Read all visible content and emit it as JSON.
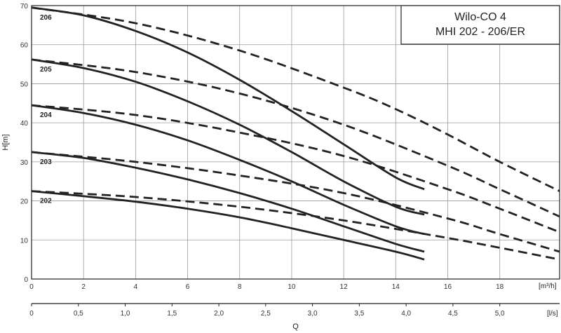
{
  "chart_data": {
    "type": "line",
    "title": [
      "Wilo-CO 4",
      "MHI 202 - 206/ER"
    ],
    "ylabel": "H[m]",
    "xlabel": "Q",
    "x_unit": "[m³/h]",
    "x2_unit": "[l/s]",
    "xlim": [
      0,
      20.3
    ],
    "ylim": [
      0,
      70
    ],
    "xticks": [
      0,
      2,
      4,
      6,
      8,
      10,
      12,
      14,
      16,
      18
    ],
    "xtick_labels": [
      "0",
      "2",
      "4",
      "6",
      "8",
      "10",
      "12",
      "14",
      "16",
      "18"
    ],
    "yticks": [
      0,
      10,
      20,
      30,
      40,
      50,
      60,
      70
    ],
    "ytick_labels": [
      "0",
      "10",
      "20",
      "30",
      "40",
      "50",
      "60",
      "70"
    ],
    "x2_ticks": [
      0,
      0.5,
      1.0,
      1.5,
      2.0,
      2.5,
      3.0,
      3.5,
      4.0,
      4.5,
      5.0
    ],
    "x2_tick_labels": [
      "0",
      "0,5",
      "1,0",
      "1,5",
      "2,0",
      "2,5",
      "3,0",
      "3,5",
      "4,0",
      "4,5",
      "5,0"
    ],
    "grid": true,
    "series": [
      {
        "name": "206",
        "style": "solid",
        "x": [
          0,
          2,
          4,
          6,
          8,
          10,
          12,
          14,
          15.1
        ],
        "y": [
          69.5,
          67.5,
          63.5,
          58,
          51,
          43,
          34.5,
          26,
          23
        ]
      },
      {
        "name": "206",
        "style": "dashed",
        "x": [
          0,
          4,
          8,
          12,
          14,
          16,
          18,
          20.3
        ],
        "y": [
          69.5,
          65.5,
          58.5,
          49,
          43.5,
          37,
          30,
          22.5
        ]
      },
      {
        "name": "205",
        "style": "solid",
        "x": [
          0,
          2,
          4,
          6,
          8,
          10,
          12,
          14,
          15.1
        ],
        "y": [
          56.2,
          54,
          50.5,
          45.5,
          39.5,
          32.5,
          25,
          18.5,
          16.5
        ]
      },
      {
        "name": "205",
        "style": "dashed",
        "x": [
          0,
          4,
          8,
          12,
          16,
          18,
          20.3
        ],
        "y": [
          56.2,
          53,
          47.5,
          39.5,
          29,
          23,
          16
        ]
      },
      {
        "name": "204",
        "style": "solid",
        "x": [
          0,
          2,
          4,
          6,
          8,
          10,
          12,
          14,
          15.1
        ],
        "y": [
          44.5,
          42.5,
          39.5,
          35.5,
          30.5,
          25,
          19,
          13.5,
          11.5
        ]
      },
      {
        "name": "204",
        "style": "dashed",
        "x": [
          0,
          4,
          8,
          12,
          16,
          18,
          20.3
        ],
        "y": [
          44.5,
          42,
          37.5,
          31.5,
          23,
          18,
          12
        ]
      },
      {
        "name": "203",
        "style": "solid",
        "x": [
          0,
          2,
          4,
          6,
          8,
          10,
          12,
          14,
          15.1
        ],
        "y": [
          32.5,
          31,
          28.5,
          25.5,
          22,
          18,
          13.5,
          9,
          7
        ]
      },
      {
        "name": "203",
        "style": "dashed",
        "x": [
          0,
          4,
          8,
          12,
          16,
          18,
          20.3
        ],
        "y": [
          32.5,
          30,
          26.5,
          22,
          15.5,
          11.5,
          7
        ]
      },
      {
        "name": "202",
        "style": "solid",
        "x": [
          0,
          2,
          4,
          6,
          8,
          10,
          12,
          14,
          15.1
        ],
        "y": [
          22.5,
          21.2,
          19.8,
          18,
          15.8,
          13,
          10,
          7,
          5
        ]
      },
      {
        "name": "202",
        "style": "dashed",
        "x": [
          0,
          4,
          8,
          12,
          16,
          18,
          20.3
        ],
        "y": [
          22.5,
          21,
          18.5,
          15,
          10.5,
          8,
          5
        ]
      }
    ],
    "curve_labels": [
      {
        "text": "206",
        "at": 206
      },
      {
        "text": "205",
        "at": 205
      },
      {
        "text": "204",
        "at": 204
      },
      {
        "text": "203",
        "at": 203
      },
      {
        "text": "202",
        "at": 202
      }
    ]
  }
}
